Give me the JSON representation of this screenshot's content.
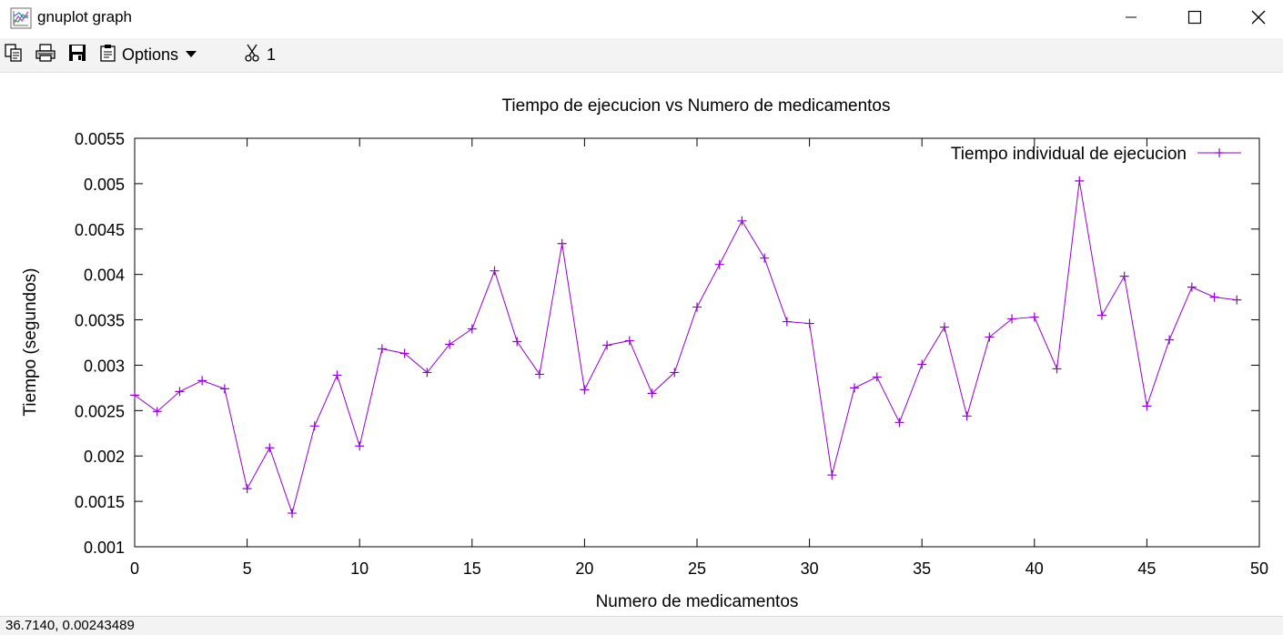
{
  "window": {
    "title": "gnuplot graph",
    "minimize_icon": "minimize-icon",
    "maximize_icon": "maximize-icon",
    "close_icon": "close-icon"
  },
  "toolbar": {
    "copy_icon": "copy-icon",
    "print_icon": "printer-icon",
    "save_icon": "save-icon",
    "options_icon": "clipboard-settings-icon",
    "options_label": "Options",
    "dropdown_icon": "caret-down-icon",
    "scissors_icon": "scissors-icon",
    "plot_toggle_label": "1"
  },
  "status": {
    "coordinates": "36.7140,  0.00243489"
  },
  "colors": {
    "series": "#9400d3",
    "toolbar_bg": "#f3f3f3"
  },
  "chart_data": {
    "type": "line",
    "title": "Tiempo de ejecucion vs Numero de medicamentos",
    "xlabel": "Numero de medicamentos",
    "ylabel": "Tiempo (segundos)",
    "xlim": [
      0,
      50
    ],
    "ylim": [
      0.001,
      0.0055
    ],
    "xticks": [
      "0",
      "5",
      "10",
      "15",
      "20",
      "25",
      "30",
      "35",
      "40",
      "45",
      "50"
    ],
    "yticks": [
      "0.001",
      "0.0015",
      "0.002",
      "0.0025",
      "0.003",
      "0.0035",
      "0.004",
      "0.0045",
      "0.005",
      "0.0055"
    ],
    "legend_position": "top-right",
    "series": [
      {
        "name": "Tiempo individual de ejecucion",
        "color": "#9400d3",
        "marker": "plus",
        "x": [
          0,
          1,
          2,
          3,
          4,
          5,
          6,
          7,
          8,
          9,
          10,
          11,
          12,
          13,
          14,
          15,
          16,
          17,
          18,
          19,
          20,
          21,
          22,
          23,
          24,
          25,
          26,
          27,
          28,
          29,
          30,
          31,
          32,
          33,
          34,
          35,
          36,
          37,
          38,
          39,
          40,
          41,
          42,
          43,
          44,
          45,
          46,
          47,
          48,
          49
        ],
        "y": [
          0.00267,
          0.00249,
          0.00271,
          0.00283,
          0.00274,
          0.00164,
          0.00209,
          0.00137,
          0.00233,
          0.00289,
          0.00211,
          0.00318,
          0.00313,
          0.00292,
          0.00323,
          0.0034,
          0.00404,
          0.00326,
          0.0029,
          0.00434,
          0.00273,
          0.00322,
          0.00327,
          0.00269,
          0.00292,
          0.00364,
          0.00411,
          0.00459,
          0.00418,
          0.00348,
          0.00346,
          0.00179,
          0.00275,
          0.00287,
          0.00237,
          0.00301,
          0.00342,
          0.00244,
          0.00331,
          0.00351,
          0.00353,
          0.00296,
          0.00503,
          0.00355,
          0.00398,
          0.00255,
          0.00328,
          0.00386,
          0.00375,
          0.00372
        ]
      }
    ]
  }
}
